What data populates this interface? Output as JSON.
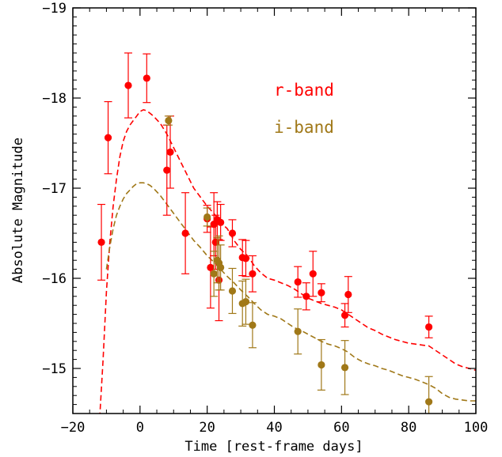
{
  "chart_data": {
    "type": "scatter",
    "xlabel": "Time [rest-frame days]",
    "ylabel": "Absolute Magnitude",
    "xlim": [
      -20,
      100
    ],
    "ylim": [
      -14.5,
      -19
    ],
    "y_inverted": true,
    "x_ticks": [
      "−20",
      "0",
      "20",
      "40",
      "60",
      "80",
      "100"
    ],
    "y_ticks": [
      "−19",
      "−18",
      "−17",
      "−16",
      "−15"
    ],
    "x_tick_values": [
      -20,
      0,
      20,
      40,
      60,
      80,
      100
    ],
    "y_tick_values": [
      -19,
      -18,
      -17,
      -16,
      -15
    ],
    "grid": false,
    "legend_position": "upper-right",
    "series": [
      {
        "name": "r-band",
        "color": "#ff0000",
        "points": [
          {
            "x": -11.5,
            "y": -16.4,
            "err": 0.42
          },
          {
            "x": -9.5,
            "y": -17.56,
            "err": 0.4
          },
          {
            "x": -3.5,
            "y": -18.14,
            "err": 0.36
          },
          {
            "x": 2.0,
            "y": -18.22,
            "err": 0.27
          },
          {
            "x": 8.0,
            "y": -17.2,
            "err": 0.5
          },
          {
            "x": 9.0,
            "y": -17.4,
            "err": 0.4
          },
          {
            "x": 13.5,
            "y": -16.5,
            "err": 0.45
          },
          {
            "x": 20.0,
            "y": -16.66,
            "err": 0.15
          },
          {
            "x": 21.0,
            "y": -16.12,
            "err": 0.45
          },
          {
            "x": 22.0,
            "y": -16.6,
            "err": 0.35
          },
          {
            "x": 22.5,
            "y": -16.4,
            "err": 0.3
          },
          {
            "x": 23.0,
            "y": -16.65,
            "err": 0.2
          },
          {
            "x": 23.5,
            "y": -15.98,
            "err": 0.45
          },
          {
            "x": 24.0,
            "y": -16.62,
            "err": 0.2
          },
          {
            "x": 27.5,
            "y": -16.5,
            "err": 0.15
          },
          {
            "x": 30.5,
            "y": -16.23,
            "err": 0.2
          },
          {
            "x": 31.5,
            "y": -16.22,
            "err": 0.2
          },
          {
            "x": 33.5,
            "y": -16.05,
            "err": 0.2
          },
          {
            "x": 47.0,
            "y": -15.96,
            "err": 0.17
          },
          {
            "x": 49.5,
            "y": -15.8,
            "err": 0.15
          },
          {
            "x": 51.5,
            "y": -16.05,
            "err": 0.25
          },
          {
            "x": 54.0,
            "y": -15.84,
            "err": 0.1
          },
          {
            "x": 61.0,
            "y": -15.59,
            "err": 0.13
          },
          {
            "x": 62.0,
            "y": -15.82,
            "err": 0.2
          },
          {
            "x": 86.0,
            "y": -15.46,
            "err": 0.12
          }
        ],
        "model": {
          "x": [
            -12,
            -11,
            -10,
            -9,
            -8,
            -7,
            -6,
            -5,
            -4,
            -3,
            -2,
            -1,
            0,
            1,
            2,
            3,
            4,
            6,
            8,
            10,
            12,
            14,
            16,
            18,
            20,
            22,
            24,
            26,
            28,
            30,
            32,
            34,
            36,
            38,
            40,
            42,
            44,
            46,
            48,
            50,
            52,
            54,
            56,
            58,
            60,
            62,
            64,
            66,
            68,
            70,
            72,
            74,
            76,
            78,
            80,
            82,
            84,
            86,
            88,
            90,
            92,
            94,
            96,
            98,
            100
          ],
          "y": [
            -14.45,
            -15.1,
            -15.85,
            -16.4,
            -16.8,
            -17.1,
            -17.35,
            -17.52,
            -17.63,
            -17.7,
            -17.75,
            -17.8,
            -17.85,
            -17.87,
            -17.86,
            -17.83,
            -17.8,
            -17.72,
            -17.6,
            -17.45,
            -17.3,
            -17.15,
            -17.0,
            -16.9,
            -16.8,
            -16.72,
            -16.62,
            -16.55,
            -16.42,
            -16.32,
            -16.25,
            -16.14,
            -16.06,
            -16.0,
            -15.98,
            -15.95,
            -15.92,
            -15.88,
            -15.83,
            -15.78,
            -15.75,
            -15.72,
            -15.7,
            -15.68,
            -15.65,
            -15.6,
            -15.55,
            -15.5,
            -15.45,
            -15.42,
            -15.38,
            -15.35,
            -15.32,
            -15.3,
            -15.28,
            -15.27,
            -15.26,
            -15.25,
            -15.2,
            -15.15,
            -15.1,
            -15.05,
            -15.02,
            -15.0,
            -14.98
          ]
        }
      },
      {
        "name": "i-band",
        "color": "#a07818",
        "points": [
          {
            "x": 8.5,
            "y": -17.75,
            "err": 0.05
          },
          {
            "x": 20.0,
            "y": -16.68,
            "err": 0.1
          },
          {
            "x": 22.0,
            "y": -16.05,
            "err": 0.25
          },
          {
            "x": 23.0,
            "y": -16.2,
            "err": 0.25
          },
          {
            "x": 23.5,
            "y": -16.17,
            "err": 0.3
          },
          {
            "x": 24.0,
            "y": -16.12,
            "err": 0.25
          },
          {
            "x": 27.5,
            "y": -15.86,
            "err": 0.25
          },
          {
            "x": 30.5,
            "y": -15.72,
            "err": 0.25
          },
          {
            "x": 31.5,
            "y": -15.74,
            "err": 0.25
          },
          {
            "x": 33.5,
            "y": -15.48,
            "err": 0.25
          },
          {
            "x": 47.0,
            "y": -15.41,
            "err": 0.25
          },
          {
            "x": 54.0,
            "y": -15.04,
            "err": 0.28
          },
          {
            "x": 61.0,
            "y": -15.01,
            "err": 0.3
          },
          {
            "x": 86.0,
            "y": -14.63,
            "err": 0.28
          }
        ],
        "model": {
          "x": [
            -10,
            -9,
            -8,
            -7,
            -6,
            -5,
            -4,
            -3,
            -2,
            -1,
            0,
            1,
            2,
            3,
            4,
            6,
            8,
            10,
            12,
            14,
            16,
            18,
            20,
            22,
            24,
            26,
            28,
            30,
            32,
            34,
            36,
            38,
            40,
            42,
            44,
            46,
            48,
            50,
            52,
            54,
            56,
            58,
            60,
            62,
            64,
            66,
            68,
            70,
            72,
            74,
            76,
            78,
            80,
            82,
            84,
            86,
            88,
            90,
            92,
            94,
            96,
            98,
            100
          ],
          "y": [
            -16.1,
            -16.35,
            -16.55,
            -16.7,
            -16.8,
            -16.88,
            -16.94,
            -16.98,
            -17.02,
            -17.05,
            -17.06,
            -17.06,
            -17.05,
            -17.03,
            -17.0,
            -16.92,
            -16.82,
            -16.72,
            -16.62,
            -16.52,
            -16.42,
            -16.34,
            -16.25,
            -16.18,
            -16.1,
            -16.02,
            -15.95,
            -15.87,
            -15.8,
            -15.72,
            -15.65,
            -15.6,
            -15.58,
            -15.55,
            -15.5,
            -15.45,
            -15.42,
            -15.38,
            -15.34,
            -15.3,
            -15.27,
            -15.25,
            -15.22,
            -15.18,
            -15.12,
            -15.08,
            -15.05,
            -15.03,
            -15.0,
            -14.98,
            -14.95,
            -14.92,
            -14.9,
            -14.88,
            -14.85,
            -14.82,
            -14.78,
            -14.72,
            -14.68,
            -14.66,
            -14.65,
            -14.64,
            -14.64
          ]
        }
      }
    ]
  }
}
